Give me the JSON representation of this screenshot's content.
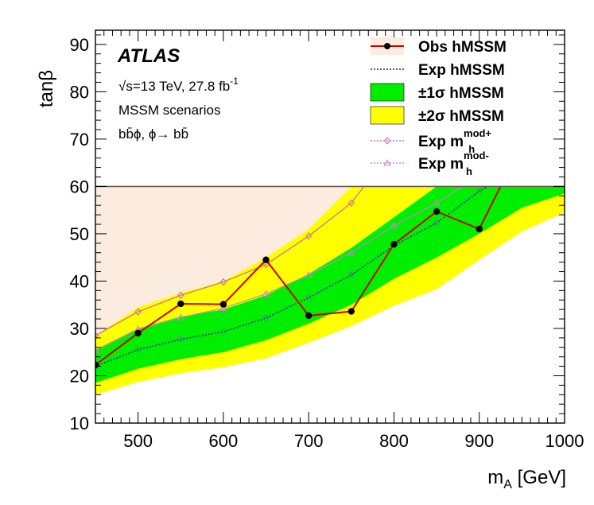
{
  "chart_data": {
    "type": "line",
    "title": "",
    "xlabel": "m_A [GeV]",
    "ylabel": "tanβ",
    "xlim": [
      450,
      1000
    ],
    "ylim": [
      10,
      93
    ],
    "x_ticks": [
      500,
      600,
      700,
      800,
      900,
      1000
    ],
    "y_ticks": [
      10,
      20,
      30,
      40,
      50,
      60,
      70,
      80,
      90
    ],
    "x_tick_labels": [
      "500",
      "600",
      "700",
      "800",
      "900",
      "1000"
    ],
    "y_tick_labels": [
      "10",
      "20",
      "30",
      "40",
      "50",
      "60",
      "70",
      "80",
      "90"
    ],
    "mhmax_line": 60,
    "annotations": {
      "experiment": "ATLAS",
      "energy": "√s=13 TeV, 27.8 fb",
      "energy_sup": "-1",
      "scenario": "MSSM scenarios",
      "process": "bb̄ϕ, ϕ→ bb̄"
    },
    "series": [
      {
        "name": "Obs hMSSM",
        "label": "Obs  hMSSM",
        "color": "#cc0000",
        "excluded_fill": "#fcebdf",
        "x": [
          450,
          500,
          550,
          600,
          650,
          700,
          750,
          800,
          850,
          900,
          925
        ],
        "values": [
          22.3,
          29.0,
          35.2,
          35.1,
          44.5,
          32.7,
          33.6,
          47.8,
          54.7,
          51.0,
          60
        ]
      },
      {
        "name": "Exp hMSSM",
        "label": "Exp  hMSSM",
        "color": "#1a1aa8",
        "x": [
          450,
          500,
          550,
          600,
          650,
          700,
          750,
          800,
          850,
          900,
          910
        ],
        "values": [
          22.0,
          25.5,
          27.7,
          29.3,
          32.2,
          36.5,
          41.3,
          47.5,
          52.3,
          59.0,
          60
        ]
      },
      {
        "name": "±1σ hMSSM",
        "label": "±1σ  hMSSM",
        "color": "#00ee00",
        "x": [
          450,
          500,
          550,
          600,
          650,
          700,
          750,
          800,
          850,
          900,
          950,
          1000
        ],
        "upper": [
          25.5,
          30.0,
          32.5,
          34.0,
          37.0,
          41.5,
          47.0,
          53.5,
          60,
          60,
          60,
          60
        ],
        "lower": [
          18.5,
          21.5,
          23.5,
          25.0,
          27.5,
          31.0,
          35.0,
          40.5,
          45.0,
          50.0,
          55.5,
          58.5
        ]
      },
      {
        "name": "±2σ hMSSM",
        "label": "±2σ  hMSSM",
        "color": "#ffff00",
        "x": [
          450,
          500,
          550,
          600,
          650,
          700,
          750,
          800,
          850,
          900,
          950,
          1000
        ],
        "upper": [
          28.5,
          34.5,
          37.5,
          40.0,
          45.0,
          51.0,
          60,
          60,
          60,
          60,
          60,
          60
        ],
        "lower": [
          16.0,
          18.7,
          20.5,
          21.8,
          23.7,
          27.0,
          30.5,
          34.8,
          38.3,
          44.5,
          50.5,
          54.5
        ]
      },
      {
        "name": "Exp mh mod+",
        "label": "Exp  m",
        "label_sub": "h",
        "label_sup": "mod+",
        "color": "#cc66aa",
        "marker": "diamond",
        "x": [
          450,
          500,
          550,
          600,
          650,
          700,
          750,
          765
        ],
        "values": [
          28.5,
          33.5,
          37.0,
          39.8,
          43.5,
          49.5,
          56.5,
          60
        ]
      },
      {
        "name": "Exp mh mod-",
        "label": "Exp  m",
        "label_sub": "h",
        "label_sup": "mod-",
        "color": "#c088c8",
        "marker": "triangle",
        "x": [
          450,
          500,
          550,
          600,
          650,
          700,
          750,
          800,
          850,
          880
        ],
        "values": [
          25.3,
          29.8,
          32.3,
          34.3,
          37.3,
          41.3,
          46.0,
          51.7,
          56.5,
          60
        ]
      }
    ]
  }
}
